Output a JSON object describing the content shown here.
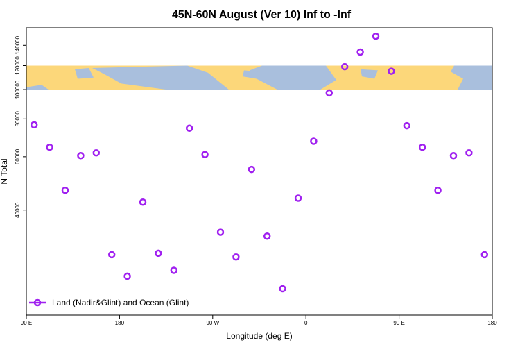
{
  "chart_data": {
    "type": "scatter",
    "title": "45N-60N August (Ver 10)   Inf to -Inf",
    "xlabel": "Longitude (deg E)",
    "ylabel": "N Total",
    "x_ticks": [
      {
        "value": 0,
        "label": "90 E"
      },
      {
        "value": 90,
        "label": "180"
      },
      {
        "value": 180,
        "label": "90 W"
      },
      {
        "value": 270,
        "label": "0"
      },
      {
        "value": 360,
        "label": "90 E"
      },
      {
        "value": 450,
        "label": "180"
      }
    ],
    "y_ticks": [
      {
        "value": 40000,
        "label": "40000"
      },
      {
        "value": 60000,
        "label": "60000"
      },
      {
        "value": 80000,
        "label": "80000"
      },
      {
        "value": 100000,
        "label": "100000"
      },
      {
        "value": 120000,
        "label": "120000"
      },
      {
        "value": 140000,
        "label": "140000"
      }
    ],
    "xlim": [
      0,
      450
    ],
    "ylim_display": [
      18000,
      160000
    ],
    "y_scale": "log",
    "map_band": {
      "y_from": 100000,
      "y_to": 120000,
      "land_color": "#fcd77a",
      "ocean_color": "#a9bfdd"
    },
    "legend_position": "bottom-left",
    "series": [
      {
        "name": "Land (Nadir&Glint) and Ocean (Glint)",
        "color": "#a020f0",
        "marker": "circle-open",
        "points": [
          {
            "x": 7.5,
            "y": 76500
          },
          {
            "x": 22.5,
            "y": 64500
          },
          {
            "x": 37.5,
            "y": 46500
          },
          {
            "x": 52.5,
            "y": 60500
          },
          {
            "x": 67.5,
            "y": 61800
          },
          {
            "x": 82.5,
            "y": 28500
          },
          {
            "x": 97.5,
            "y": 24200
          },
          {
            "x": 112.5,
            "y": 42500
          },
          {
            "x": 127.5,
            "y": 28800
          },
          {
            "x": 142.5,
            "y": 25300
          },
          {
            "x": 157.5,
            "y": 74500
          },
          {
            "x": 172.5,
            "y": 61000
          },
          {
            "x": 187.5,
            "y": 33800
          },
          {
            "x": 202.5,
            "y": 28000
          },
          {
            "x": 217.5,
            "y": 54500
          },
          {
            "x": 232.5,
            "y": 32800
          },
          {
            "x": 247.5,
            "y": 22000
          },
          {
            "x": 262.5,
            "y": 43800
          },
          {
            "x": 277.5,
            "y": 67500
          },
          {
            "x": 292.5,
            "y": 97500
          },
          {
            "x": 307.5,
            "y": 119000
          },
          {
            "x": 322.5,
            "y": 133000
          },
          {
            "x": 337.5,
            "y": 150000
          },
          {
            "x": 352.5,
            "y": 115000
          },
          {
            "x": 367.5,
            "y": 76000
          },
          {
            "x": 382.5,
            "y": 64500
          },
          {
            "x": 397.5,
            "y": 46500
          },
          {
            "x": 412.5,
            "y": 60500
          },
          {
            "x": 427.5,
            "y": 61800
          },
          {
            "x": 442.5,
            "y": 28500
          }
        ]
      }
    ]
  }
}
